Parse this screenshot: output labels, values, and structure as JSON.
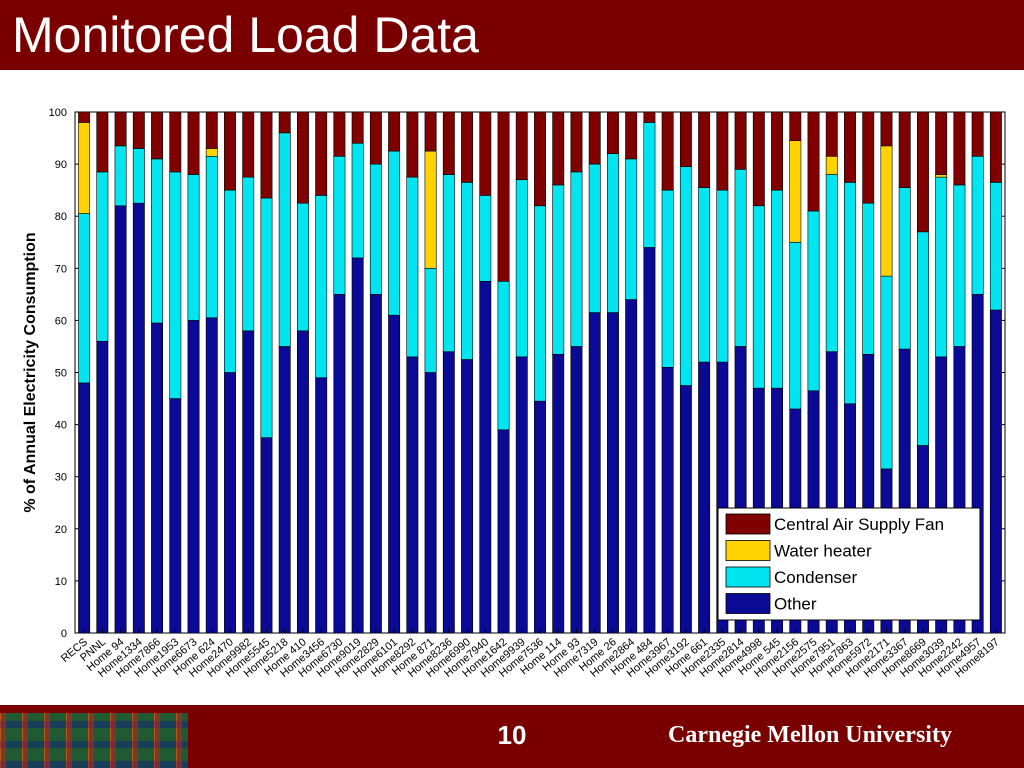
{
  "slide": {
    "title": "Monitored Load Data",
    "page_number": "10",
    "footer_university": "Carnegie Mellon University"
  },
  "colors": {
    "header_bg": "#7a0000",
    "Central Air Supply Fan": "#800000",
    "Water heater": "#ffd200",
    "Condenser": "#00e5f0",
    "Other": "#0a0a96"
  },
  "chart_data": {
    "type": "bar",
    "stacked": true,
    "ylabel": "% of Annual Electricity Consumption",
    "ylim": [
      0,
      100
    ],
    "yticks": [
      0,
      10,
      20,
      30,
      40,
      50,
      60,
      70,
      80,
      90,
      100
    ],
    "legend_position": "bottom-right",
    "categories": [
      "RECS",
      "PNNL",
      "Home 94",
      "Home1334",
      "Home7866",
      "Home1953",
      "Home6673",
      "Home 624",
      "Home2470",
      "Home9982",
      "Home5545",
      "Home5218",
      "Home 410",
      "Home3456",
      "Home6730",
      "Home9019",
      "Home2829",
      "Home6101",
      "Home8292",
      "Home 871",
      "Home8236",
      "Home6990",
      "Home7940",
      "Home1642",
      "Home9939",
      "Home7536",
      "Home 114",
      "Home 93",
      "Home7319",
      "Home 26",
      "Home2864",
      "Home 484",
      "Home3967",
      "Home3192",
      "Home 661",
      "Home2335",
      "Home2814",
      "Home4998",
      "Home 545",
      "Home2156",
      "Home2575",
      "Home7951",
      "Home7863",
      "Home5972",
      "Home2171",
      "Home3367",
      "Home8669",
      "Home3039",
      "Home2242",
      "Home4957",
      "Home8197"
    ],
    "series": [
      {
        "name": "Other",
        "values": [
          48,
          56,
          82,
          82.5,
          59.5,
          45,
          60,
          60.5,
          50,
          58,
          37.5,
          55,
          58,
          49,
          65,
          72,
          65,
          61,
          53,
          50,
          54,
          52.5,
          67.5,
          39,
          53,
          44.5,
          53.5,
          55,
          61.5,
          61.5,
          64,
          74,
          51,
          47.5,
          52,
          52,
          55,
          47,
          47,
          43,
          46.5,
          54,
          44,
          53.5,
          31.5,
          54.5,
          36,
          53,
          55,
          65,
          62
        ]
      },
      {
        "name": "Condenser",
        "values": [
          32.5,
          32.5,
          11.5,
          10.5,
          31.5,
          43.5,
          28,
          31,
          35,
          29.5,
          46,
          41,
          24.5,
          35,
          26.5,
          22,
          25,
          31.5,
          34.5,
          20,
          34,
          34,
          16.5,
          28.5,
          34,
          37.5,
          32.5,
          33.5,
          28.5,
          30.5,
          27,
          24,
          34,
          42,
          33.5,
          33,
          34,
          35,
          38,
          32,
          34.5,
          34,
          42.5,
          29,
          37,
          31,
          41,
          34.5,
          31,
          26.5,
          24.5
        ]
      },
      {
        "name": "Water heater",
        "values": [
          17.5,
          0,
          0,
          0,
          0,
          0,
          0,
          1.5,
          0,
          0,
          0,
          0,
          0,
          0,
          0,
          0,
          0,
          0,
          0,
          22.5,
          0,
          0,
          0,
          0,
          0,
          0,
          0,
          0,
          0,
          0,
          0,
          0,
          0,
          0,
          0,
          0,
          0,
          0,
          0,
          19.5,
          0,
          3.5,
          0,
          0,
          25,
          0,
          0,
          0.5,
          0,
          0,
          0
        ]
      },
      {
        "name": "Central Air Supply Fan",
        "values": [
          2,
          11.5,
          6.5,
          7,
          9,
          11.5,
          12,
          7,
          15,
          12.5,
          16.5,
          4,
          17.5,
          16,
          8.5,
          6,
          10,
          7.5,
          12.5,
          7.5,
          12,
          13.5,
          16,
          32.5,
          13,
          18,
          14,
          11.5,
          10,
          8,
          9,
          2,
          15,
          10.5,
          14.5,
          15,
          11,
          18,
          15,
          5.5,
          19,
          8.5,
          13.5,
          17.5,
          6.5,
          14.5,
          23,
          12,
          14,
          8.5,
          13.5
        ]
      }
    ]
  }
}
